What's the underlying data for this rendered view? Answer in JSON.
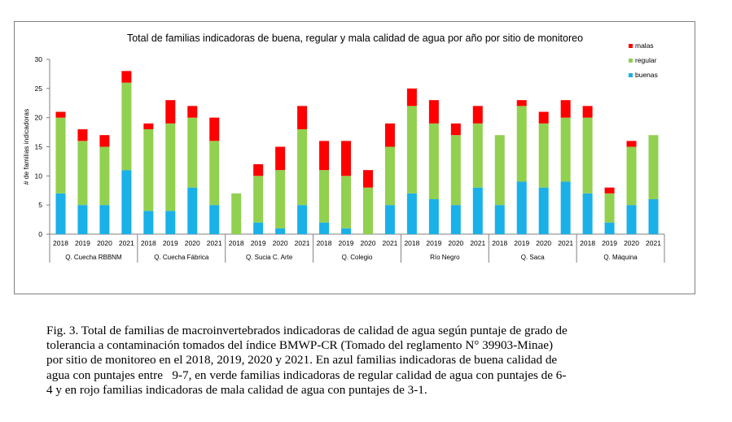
{
  "chart_data": {
    "type": "bar",
    "stacked": true,
    "title": "Total de familias indicadoras de buena, regular y mala calidad de agua por año por sitio de monitoreo",
    "ylabel": "# de familias indicadoras",
    "xlabel": "",
    "ylim": [
      0,
      30
    ],
    "yticks": [
      0,
      5,
      10,
      15,
      20,
      25,
      30
    ],
    "legend_position": "top-right",
    "years": [
      "2018",
      "2019",
      "2020",
      "2021"
    ],
    "groups": [
      "Q. Cuecha RBBNM",
      "Q. Cuecha Fábrica",
      "Q. Sucia   C. Arte",
      "Q. Colegio",
      "Río Negro",
      "Q. Saca",
      "Q. Máquina"
    ],
    "series": [
      {
        "name": "buenas",
        "color": "#1ab0e8",
        "values": [
          7,
          5,
          5,
          11,
          4,
          4,
          8,
          5,
          0,
          2,
          1,
          5,
          2,
          1,
          0,
          5,
          7,
          6,
          5,
          8,
          5,
          9,
          8,
          9,
          7,
          2,
          5,
          6
        ]
      },
      {
        "name": "regular",
        "color": "#92d050",
        "values": [
          13,
          11,
          10,
          15,
          14,
          15,
          12,
          11,
          7,
          8,
          10,
          13,
          9,
          9,
          8,
          10,
          15,
          13,
          12,
          11,
          12,
          13,
          11,
          11,
          13,
          5,
          10,
          11
        ]
      },
      {
        "name": "malas",
        "color": "#ff0000",
        "values": [
          1,
          2,
          2,
          2,
          1,
          4,
          2,
          4,
          0,
          2,
          4,
          4,
          5,
          6,
          3,
          4,
          3,
          4,
          2,
          3,
          0,
          1,
          2,
          3,
          2,
          1,
          1,
          0
        ]
      }
    ]
  },
  "caption": {
    "line1": "Fig. 3. Total de familias de macroinvertebrados indicadoras de calidad de agua según puntaje de grado de",
    "line2": "tolerancia a contaminación tomados del índice BMWP-CR (Tomado del reglamento N° 39903-Minae)",
    "line3": "por sitio de monitoreo en el 2018, 2019, 2020 y 2021. En azul familias indicadoras de buena calidad de",
    "line4": "agua con puntajes entre   9-7, en verde familias indicadoras de regular calidad de agua con puntajes de 6-",
    "line5": "4 y en rojo familias indicadoras de mala calidad de agua con puntajes de 3-1."
  }
}
